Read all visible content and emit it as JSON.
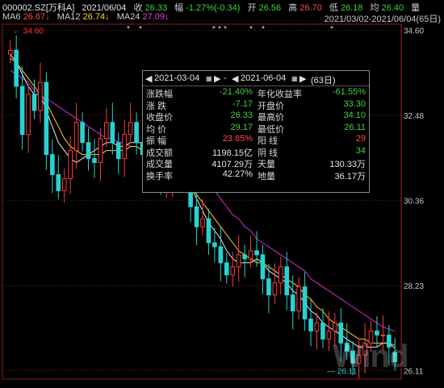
{
  "header": {
    "code": "000002.SZ[万科A]",
    "date": "2021/06/04",
    "close_label": "收",
    "close_value": "26.33",
    "change_label": "幅",
    "change_value": "-1.27%(-0.34)",
    "open_label": "开",
    "open_value": "26.56",
    "high_label": "高",
    "high_value": "26.70",
    "low_label": "低",
    "low_value": "26.18",
    "avg_label": "均",
    "avg_value": "26.40",
    "vol_label": "量",
    "range_text": "2021/03/02-2021/06/04(65日)"
  },
  "ma": {
    "ma6_label": "MA6",
    "ma6_value": "26.67↓",
    "ma12_label": "MA12",
    "ma12_value": "26.74↓",
    "ma24_label": "MA24",
    "ma24_value": "27.09↓"
  },
  "colors": {
    "up": "#ff3b3b",
    "down": "#28d2d2",
    "ma6": "#e8e8e8",
    "ma12": "#ffd21e",
    "ma24": "#d030d0",
    "grid": "#8a1c1c"
  },
  "axis": {
    "y_ticks": [
      "34.60",
      "32.48",
      "30.36",
      "28.23",
      "26.11"
    ],
    "high_marker": "34.60",
    "low_marker": "26.11"
  },
  "popup": {
    "start_date": "2021-03-04",
    "end_date": "2021-06-04",
    "dash": "-",
    "days": "(63日)",
    "rows": [
      {
        "k1": "涨跌幅",
        "v1": "-21.40%",
        "c1": "grn",
        "k2": "年化收益率",
        "v2": "-61.55%",
        "c2": "grn"
      },
      {
        "k1": "涨 跌",
        "v1": "-7.17",
        "c1": "grn",
        "k2": "开盘价",
        "v2": "33.30",
        "c2": "grn"
      },
      {
        "k1": "收盘价",
        "v1": "26.33",
        "c1": "grn",
        "k2": "最高价",
        "v2": "34.10",
        "c2": "grn"
      },
      {
        "k1": "均 价",
        "v1": "29.17",
        "c1": "grn",
        "k2": "最低价",
        "v2": "26.11",
        "c2": "grn"
      },
      {
        "k1": "振 幅",
        "v1": "23.85%",
        "c1": "red",
        "k2": "阳 线",
        "v2": "29",
        "c2": "red"
      },
      {
        "k1": "成交额",
        "v1": "1198.15亿",
        "c1": "wht",
        "k2": "阴 线",
        "v2": "34",
        "c2": "grn"
      },
      {
        "k1": "成交量",
        "v1": "4107.29万",
        "c1": "wht",
        "k2": "天量",
        "v2": "130.33万",
        "c2": "wht"
      },
      {
        "k1": "换手率",
        "v1": "42.27%",
        "c1": "wht",
        "k2": "地量",
        "v2": "36.17万",
        "c2": "wht"
      }
    ]
  },
  "watermark": "Wind",
  "chart_data": {
    "type": "candlestick",
    "title": "",
    "y_ticks": [
      34.6,
      32.48,
      30.36,
      28.23,
      26.11
    ],
    "ylim": [
      25.9,
      34.75
    ],
    "closes": [
      34.1,
      33.2,
      32.0,
      33.0,
      32.6,
      33.3,
      31.5,
      31.0,
      30.6,
      30.9,
      31.6,
      32.3,
      31.8,
      31.4,
      31.3,
      31.9,
      32.3,
      31.8,
      31.4,
      32.0,
      32.3,
      31.8,
      31.5,
      31.4,
      31.0,
      30.8,
      30.9,
      31.3,
      31.6,
      31.0,
      30.2,
      29.7,
      29.9,
      29.3,
      29.2,
      28.8,
      28.5,
      28.7,
      29.0,
      28.9,
      29.1,
      29.0,
      28.4,
      28.0,
      28.3,
      28.7,
      28.0,
      27.6,
      28.2,
      27.4,
      27.1,
      27.3,
      26.9,
      27.1,
      27.3,
      26.8,
      26.6,
      26.3,
      26.5,
      26.8,
      27.1,
      27.0,
      27.0,
      26.7,
      26.33
    ],
    "opens": [
      34.0,
      34.1,
      33.2,
      32.0,
      33.0,
      32.6,
      33.3,
      31.5,
      31.0,
      30.6,
      30.9,
      31.6,
      32.3,
      31.8,
      31.4,
      31.3,
      31.9,
      32.3,
      31.8,
      31.4,
      32.0,
      32.3,
      31.8,
      31.5,
      31.4,
      31.0,
      30.8,
      30.9,
      31.3,
      31.6,
      31.0,
      30.2,
      29.7,
      29.9,
      29.3,
      29.2,
      28.8,
      28.5,
      28.7,
      29.0,
      28.9,
      29.1,
      29.0,
      28.4,
      28.0,
      28.3,
      28.7,
      28.0,
      27.6,
      28.2,
      27.4,
      27.1,
      27.3,
      26.9,
      27.1,
      27.3,
      26.8,
      26.6,
      26.3,
      26.5,
      26.8,
      27.1,
      27.0,
      27.0,
      26.56
    ],
    "ma6": [
      34.0,
      33.8,
      33.5,
      33.2,
      33.0,
      33.0,
      32.6,
      32.2,
      31.8,
      31.6,
      31.4,
      31.3,
      31.4,
      31.5,
      31.6,
      31.7,
      31.8,
      31.8,
      31.7,
      31.7,
      31.8,
      31.8,
      31.8,
      31.7,
      31.5,
      31.3,
      31.1,
      31.0,
      31.0,
      30.9,
      30.7,
      30.4,
      30.1,
      29.8,
      29.6,
      29.4,
      29.1,
      28.9,
      28.8,
      28.8,
      28.8,
      28.9,
      28.8,
      28.6,
      28.5,
      28.4,
      28.3,
      28.1,
      28.0,
      27.8,
      27.6,
      27.5,
      27.3,
      27.2,
      27.1,
      27.0,
      26.9,
      26.8,
      26.7,
      26.7,
      26.7,
      26.7,
      26.8,
      26.8,
      26.67
    ],
    "ma12": [
      33.9,
      33.8,
      33.6,
      33.4,
      33.2,
      33.0,
      32.8,
      32.5,
      32.2,
      31.9,
      31.7,
      31.6,
      31.5,
      31.5,
      31.5,
      31.5,
      31.6,
      31.6,
      31.6,
      31.6,
      31.7,
      31.7,
      31.6,
      31.6,
      31.5,
      31.4,
      31.3,
      31.1,
      31.0,
      30.9,
      30.7,
      30.5,
      30.3,
      30.1,
      29.9,
      29.7,
      29.5,
      29.3,
      29.1,
      29.0,
      28.9,
      28.8,
      28.8,
      28.7,
      28.6,
      28.5,
      28.4,
      28.3,
      28.2,
      28.0,
      27.9,
      27.7,
      27.6,
      27.4,
      27.3,
      27.2,
      27.1,
      27.0,
      26.9,
      26.9,
      26.8,
      26.8,
      26.8,
      26.8,
      26.74
    ],
    "ma24": [
      33.6,
      33.5,
      33.4,
      33.3,
      33.1,
      33.0,
      32.9,
      32.8,
      32.7,
      32.6,
      32.5,
      32.4,
      32.3,
      32.2,
      32.1,
      32.0,
      31.9,
      31.9,
      31.8,
      31.8,
      31.7,
      31.7,
      31.6,
      31.6,
      31.5,
      31.5,
      31.4,
      31.3,
      31.3,
      31.2,
      31.1,
      31.0,
      30.9,
      30.7,
      30.6,
      30.4,
      30.2,
      30.0,
      29.9,
      29.7,
      29.6,
      29.4,
      29.3,
      29.2,
      29.1,
      29.0,
      28.9,
      28.8,
      28.7,
      28.6,
      28.4,
      28.3,
      28.2,
      28.1,
      28.0,
      27.9,
      27.8,
      27.7,
      27.6,
      27.5,
      27.4,
      27.3,
      27.2,
      27.15,
      27.09
    ]
  }
}
